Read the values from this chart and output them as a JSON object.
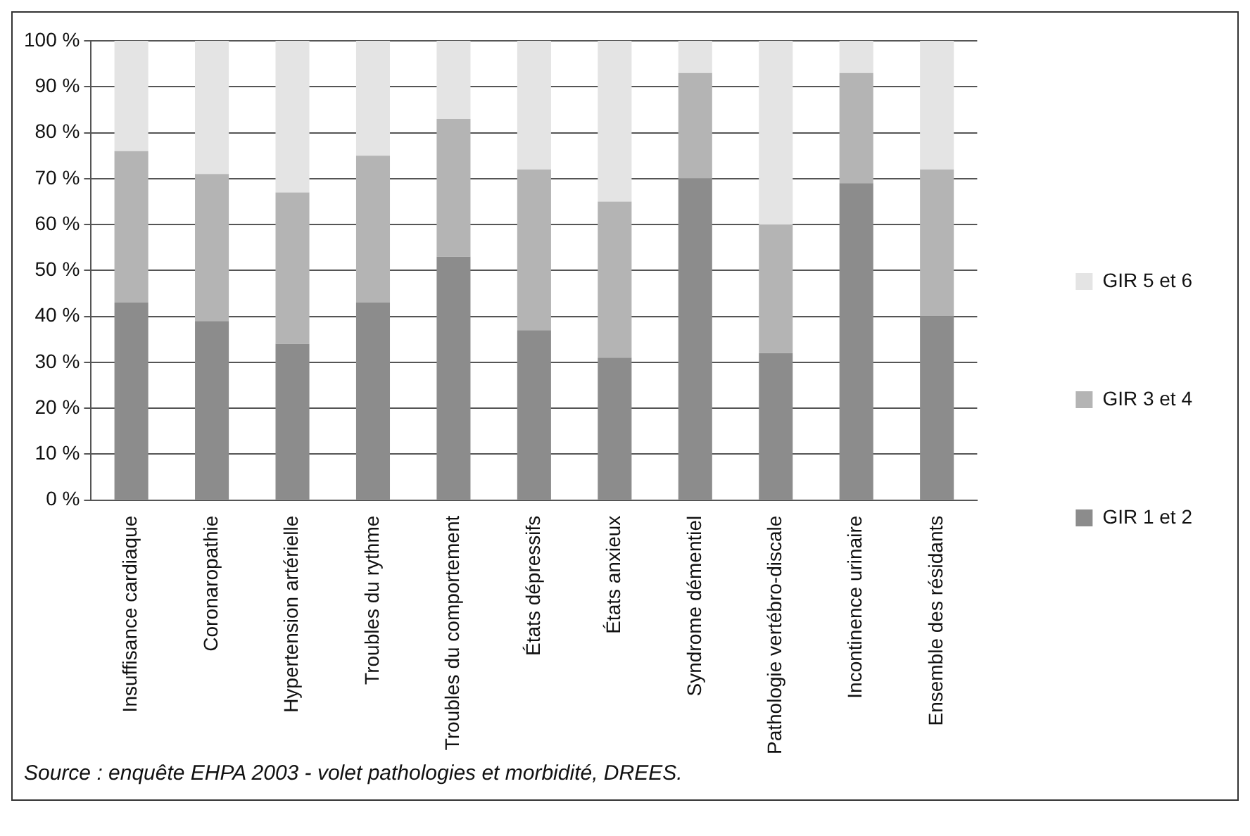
{
  "chart_data": {
    "type": "bar",
    "stacked": true,
    "categories": [
      "Insuffisance cardiaque",
      "Coronaropathie",
      "Hypertension artérielle",
      "Troubles du rythme",
      "Troubles du comportement",
      "États dépressifs",
      "États anxieux",
      "Syndrome démentiel",
      "Pathologie vertébro-discale",
      "Incontinence urinaire",
      "Ensemble des résidants"
    ],
    "series": [
      {
        "name": "GIR 1 et 2",
        "color": "#8c8c8c",
        "values": [
          43,
          39,
          34,
          43,
          53,
          37,
          31,
          70,
          32,
          69,
          40
        ]
      },
      {
        "name": "GIR 3 et 4",
        "color": "#b4b4b4",
        "values": [
          33,
          32,
          33,
          32,
          30,
          35,
          34,
          23,
          28,
          24,
          32
        ]
      },
      {
        "name": "GIR 5 et 6",
        "color": "#e4e4e4",
        "values": [
          24,
          29,
          33,
          25,
          17,
          28,
          35,
          7,
          40,
          7,
          28
        ]
      }
    ],
    "ylim": [
      0,
      100
    ],
    "yticks": [
      {
        "value": 0,
        "label": "0 %"
      },
      {
        "value": 10,
        "label": "10 %"
      },
      {
        "value": 20,
        "label": "20 %"
      },
      {
        "value": 30,
        "label": "30 %"
      },
      {
        "value": 40,
        "label": "40 %"
      },
      {
        "value": 50,
        "label": "50 %"
      },
      {
        "value": 60,
        "label": "60 %"
      },
      {
        "value": 70,
        "label": "70 %"
      },
      {
        "value": 80,
        "label": "80 %"
      },
      {
        "value": 90,
        "label": "90 %"
      },
      {
        "value": 100,
        "label": "100 %"
      }
    ],
    "grid": "y",
    "legend": "right",
    "annotations": [
      "Source : enquête EHPA 2003 - volet pathologies et morbidité, DREES."
    ]
  }
}
